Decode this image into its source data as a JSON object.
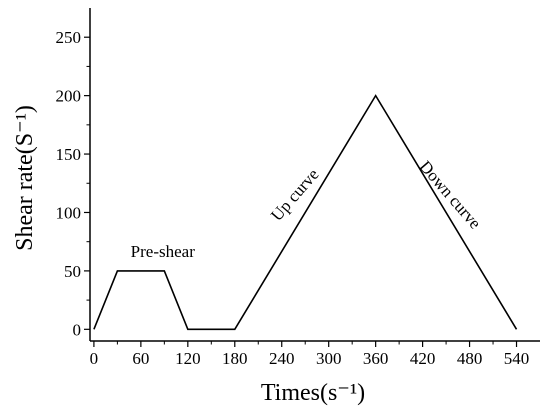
{
  "chart_data": {
    "type": "line",
    "xlabel": "Times(s⁻¹)",
    "ylabel": "Shear rate(S⁻¹)",
    "xlim": [
      -5,
      570
    ],
    "ylim": [
      -10,
      275
    ],
    "x_ticks": [
      "0",
      "60",
      "120",
      "180",
      "240",
      "300",
      "360",
      "420",
      "480",
      "540"
    ],
    "y_ticks": [
      "0",
      "50",
      "100",
      "150",
      "200",
      "250"
    ],
    "grid": false,
    "series": [
      {
        "x": [
          0,
          30,
          90,
          120,
          180,
          360,
          540
        ],
        "y": [
          0,
          50,
          50,
          0,
          0,
          200,
          0
        ]
      }
    ],
    "annotations": [
      {
        "text": "Pre-shear",
        "x": 88,
        "y": 62,
        "angle": 0
      },
      {
        "text": "Up curve",
        "x": 262,
        "y": 112,
        "angle": -49
      },
      {
        "text": "Down curve",
        "x": 450,
        "y": 112,
        "angle": 49
      }
    ]
  }
}
